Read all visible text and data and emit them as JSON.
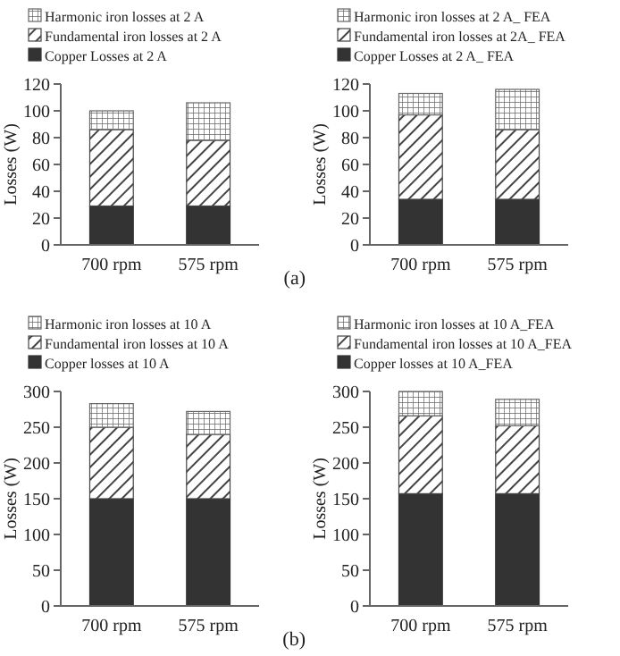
{
  "chart_data": [
    {
      "type": "bar",
      "stacked": true,
      "categories": [
        "700 rpm",
        "575 rpm"
      ],
      "ylabel": "Losses (W)",
      "ylim": [
        0,
        120
      ],
      "yticks": [
        0,
        20,
        40,
        60,
        80,
        100,
        120
      ],
      "legend": "top",
      "grid": false,
      "annotations": [
        "(a)"
      ],
      "series": [
        {
          "name": "Copper Losses at 2 A",
          "color": "#333333",
          "values": [
            29,
            29
          ]
        },
        {
          "name": "Fundamental iron losses at 2 A",
          "color": "#444444",
          "values": [
            57,
            49
          ]
        },
        {
          "name": "Harmonic iron losses at 2 A",
          "color": "#666666",
          "values": [
            14,
            28
          ]
        }
      ]
    },
    {
      "type": "bar",
      "stacked": true,
      "categories": [
        "700 rpm",
        "575 rpm"
      ],
      "ylabel": "Losses (W)",
      "ylim": [
        0,
        120
      ],
      "yticks": [
        0,
        20,
        40,
        60,
        80,
        100,
        120
      ],
      "legend": "top",
      "grid": false,
      "series": [
        {
          "name": "Copper Losses at 2 A_ FEA",
          "color": "#333333",
          "values": [
            34,
            34
          ]
        },
        {
          "name": "Fundamental iron losses at 2A_ FEA",
          "color": "#444444",
          "values": [
            63,
            52
          ]
        },
        {
          "name": "Harmonic iron losses at 2 A_ FEA",
          "color": "#666666",
          "values": [
            16,
            30
          ]
        }
      ]
    },
    {
      "type": "bar",
      "stacked": true,
      "categories": [
        "700 rpm",
        "575 rpm"
      ],
      "ylabel": "Losses (W)",
      "ylim": [
        0,
        300
      ],
      "yticks": [
        0,
        50,
        100,
        150,
        200,
        250,
        300
      ],
      "legend": "top",
      "grid": false,
      "annotations": [
        "(b)"
      ],
      "series": [
        {
          "name": "Copper losses at 10 A",
          "color": "#333333",
          "values": [
            150,
            150
          ]
        },
        {
          "name": "Fundamental iron losses at 10 A",
          "color": "#444444",
          "values": [
            100,
            90
          ]
        },
        {
          "name": "Harmonic iron losses at 10 A",
          "color": "#666666",
          "values": [
            33,
            32
          ]
        }
      ]
    },
    {
      "type": "bar",
      "stacked": true,
      "categories": [
        "700 rpm",
        "575 rpm"
      ],
      "ylabel": "Losses (W)",
      "ylim": [
        0,
        300
      ],
      "yticks": [
        0,
        50,
        100,
        150,
        200,
        250,
        300
      ],
      "legend": "top",
      "grid": false,
      "series": [
        {
          "name": "Copper losses at 10 A_FEA",
          "color": "#333333",
          "values": [
            157,
            157
          ]
        },
        {
          "name": "Fundamental iron losses at 10 A_FEA",
          "color": "#444444",
          "values": [
            109,
            95
          ]
        },
        {
          "name": "Harmonic iron losses at 10 A_FEA",
          "color": "#666666",
          "values": [
            34,
            37
          ]
        }
      ]
    }
  ]
}
